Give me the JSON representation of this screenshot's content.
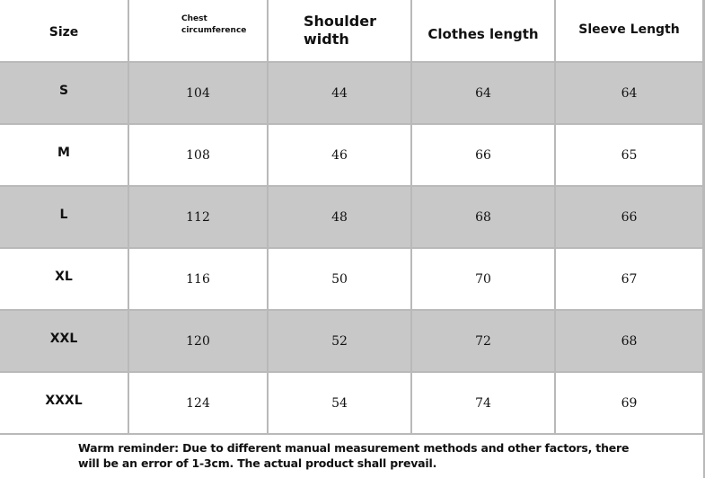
{
  "table": {
    "header": [
      "Size",
      "Chest circumference",
      "Shoulder width",
      "Clothes length",
      "Sleeve Length"
    ],
    "rows": [
      [
        "S",
        "104",
        "44",
        "64",
        "64"
      ],
      [
        "M",
        "108",
        "46",
        "66",
        "65"
      ],
      [
        "L",
        "112",
        "48",
        "68",
        "66"
      ],
      [
        "XL",
        "116",
        "50",
        "70",
        "67"
      ],
      [
        "XXL",
        "120",
        "52",
        "72",
        "68"
      ],
      [
        "XXXL",
        "124",
        "54",
        "74",
        "69"
      ]
    ],
    "footer": "Warm reminder: Due to different manual measurement methods and other factors, there will be an error of 1-3cm. The actual product shall prevail."
  }
}
